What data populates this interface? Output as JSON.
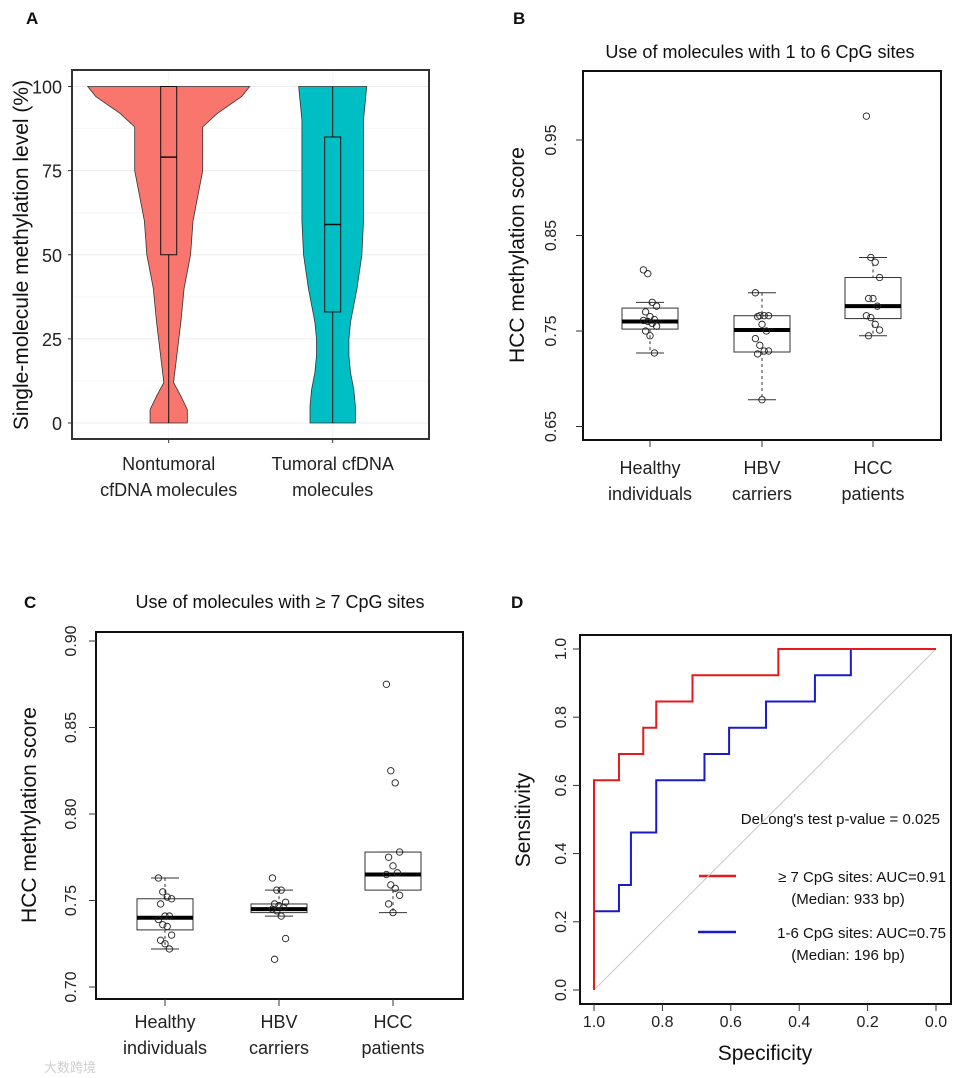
{
  "watermark": "大数跨境",
  "chart_data": [
    {
      "panel": "A",
      "type": "violin",
      "title": "",
      "ylabel": "Single-molecule methylation level (%)",
      "ylim": [
        0,
        100
      ],
      "yticks": [
        "0",
        "25",
        "50",
        "75",
        "100"
      ],
      "grid": true,
      "categories": [
        {
          "line1": "Nontumoral",
          "line2": "cfDNA molecules",
          "color": "#F8766D",
          "box": {
            "min": 0,
            "q1": 50,
            "median": 79,
            "q3": 100,
            "max": 100
          },
          "density": [
            [
              0,
              0.23
            ],
            [
              4,
              0.23
            ],
            [
              8,
              0.15
            ],
            [
              12,
              0.06
            ],
            [
              20,
              0.1
            ],
            [
              30,
              0.15
            ],
            [
              40,
              0.19
            ],
            [
              50,
              0.27
            ],
            [
              60,
              0.3
            ],
            [
              75,
              0.42
            ],
            [
              88,
              0.42
            ],
            [
              92,
              0.6
            ],
            [
              97,
              0.9
            ],
            [
              100,
              1.0
            ]
          ]
        },
        {
          "line1": "Tumoral cfDNA",
          "line2": "molecules",
          "color": "#00BFC4",
          "box": {
            "min": 0,
            "q1": 33,
            "median": 59,
            "q3": 85,
            "max": 100
          },
          "density": [
            [
              0,
              0.28
            ],
            [
              5,
              0.28
            ],
            [
              10,
              0.26
            ],
            [
              15,
              0.22
            ],
            [
              20,
              0.2
            ],
            [
              25,
              0.2
            ],
            [
              30,
              0.22
            ],
            [
              40,
              0.3
            ],
            [
              50,
              0.36
            ],
            [
              60,
              0.38
            ],
            [
              75,
              0.38
            ],
            [
              90,
              0.38
            ],
            [
              100,
              0.42
            ]
          ]
        }
      ]
    },
    {
      "panel": "B",
      "type": "box",
      "title": "Use of molecules with 1 to 6 CpG sites",
      "ylabel": "HCC methylation score",
      "ylim": [
        0.65,
        0.95
      ],
      "yticks": [
        "0.65",
        "0.75",
        "0.85",
        "0.95"
      ],
      "groups": [
        {
          "line1": "Healthy",
          "line2": "individuals",
          "box": {
            "min": 0.727,
            "q1": 0.752,
            "median": 0.76,
            "q3": 0.774,
            "max": 0.78
          },
          "points": [
            0.814,
            0.81,
            0.78,
            0.776,
            0.77,
            0.765,
            0.762,
            0.761,
            0.76,
            0.758,
            0.755,
            0.75,
            0.745,
            0.727
          ]
        },
        {
          "line1": "HBV",
          "line2": "carriers",
          "box": {
            "min": 0.678,
            "q1": 0.728,
            "median": 0.751,
            "q3": 0.766,
            "max": 0.79
          },
          "points": [
            0.79,
            0.766,
            0.766,
            0.766,
            0.765,
            0.757,
            0.75,
            0.742,
            0.735,
            0.729,
            0.729,
            0.726,
            0.678
          ]
        },
        {
          "line1": "HCC",
          "line2": "patients",
          "box": {
            "min": 0.745,
            "q1": 0.763,
            "median": 0.776,
            "q3": 0.806,
            "max": 0.827
          },
          "points": [
            0.975,
            0.827,
            0.822,
            0.806,
            0.784,
            0.784,
            0.776,
            0.766,
            0.764,
            0.757,
            0.751,
            0.745
          ]
        }
      ]
    },
    {
      "panel": "C",
      "type": "box",
      "title": "Use of molecules with ≥ 7 CpG sites",
      "ylabel": "HCC methylation score",
      "ylim": [
        0.7,
        0.9
      ],
      "yticks": [
        "0.70",
        "0.75",
        "0.80",
        "0.85",
        "0.90"
      ],
      "groups": [
        {
          "line1": "Healthy",
          "line2": "individuals",
          "box": {
            "min": 0.722,
            "q1": 0.733,
            "median": 0.74,
            "q3": 0.751,
            "max": 0.763
          },
          "points": [
            0.763,
            0.755,
            0.752,
            0.751,
            0.748,
            0.741,
            0.741,
            0.739,
            0.736,
            0.735,
            0.73,
            0.727,
            0.725,
            0.722
          ]
        },
        {
          "line1": "HBV",
          "line2": "carriers",
          "box": {
            "min": 0.741,
            "q1": 0.743,
            "median": 0.745,
            "q3": 0.748,
            "max": 0.756
          },
          "points": [
            0.763,
            0.756,
            0.756,
            0.749,
            0.748,
            0.747,
            0.746,
            0.745,
            0.744,
            0.741,
            0.728,
            0.716
          ]
        },
        {
          "line1": "HCC",
          "line2": "patients",
          "box": {
            "min": 0.743,
            "q1": 0.756,
            "median": 0.765,
            "q3": 0.778,
            "max": 0.778
          },
          "points": [
            0.875,
            0.825,
            0.818,
            0.778,
            0.775,
            0.77,
            0.766,
            0.765,
            0.759,
            0.757,
            0.753,
            0.748,
            0.743
          ]
        }
      ]
    },
    {
      "panel": "D",
      "type": "line",
      "title": "",
      "xlabel": "Specificity",
      "ylabel": "Sensitivity",
      "xlim": [
        1.0,
        0.0
      ],
      "ylim": [
        0.0,
        1.0
      ],
      "xticks": [
        "1.0",
        "0.8",
        "0.6",
        "0.4",
        "0.2",
        "0.0"
      ],
      "yticks": [
        "0.0",
        "0.2",
        "0.4",
        "0.6",
        "0.8",
        "1.0"
      ],
      "annotation": "DeLong's test p-value = 0.025",
      "series": [
        {
          "name": "≥ 7 CpG sites: AUC=0.91",
          "sub": "(Median: 933 bp)",
          "color": "#E41A1C",
          "points": [
            [
              1.0,
              0
            ],
            [
              1.0,
              0.615
            ],
            [
              0.927,
              0.615
            ],
            [
              0.927,
              0.692
            ],
            [
              0.856,
              0.692
            ],
            [
              0.856,
              0.769
            ],
            [
              0.818,
              0.769
            ],
            [
              0.818,
              0.846
            ],
            [
              0.712,
              0.846
            ],
            [
              0.712,
              0.923
            ],
            [
              0.461,
              0.923
            ],
            [
              0.461,
              1.0
            ],
            [
              0.0,
              1.0
            ]
          ]
        },
        {
          "name": "1-6 CpG sites: AUC=0.75",
          "sub": "(Median: 196 bp)",
          "color": "#1A1ACC",
          "points": [
            [
              1.0,
              0
            ],
            [
              1.0,
              0.231
            ],
            [
              0.927,
              0.231
            ],
            [
              0.927,
              0.308
            ],
            [
              0.892,
              0.308
            ],
            [
              0.892,
              0.462
            ],
            [
              0.818,
              0.462
            ],
            [
              0.818,
              0.615
            ],
            [
              0.677,
              0.615
            ],
            [
              0.677,
              0.692
            ],
            [
              0.605,
              0.692
            ],
            [
              0.605,
              0.769
            ],
            [
              0.497,
              0.769
            ],
            [
              0.497,
              0.846
            ],
            [
              0.354,
              0.846
            ],
            [
              0.354,
              0.923
            ],
            [
              0.249,
              0.923
            ],
            [
              0.249,
              1.0
            ],
            [
              0.0,
              1.0
            ]
          ]
        }
      ]
    }
  ]
}
